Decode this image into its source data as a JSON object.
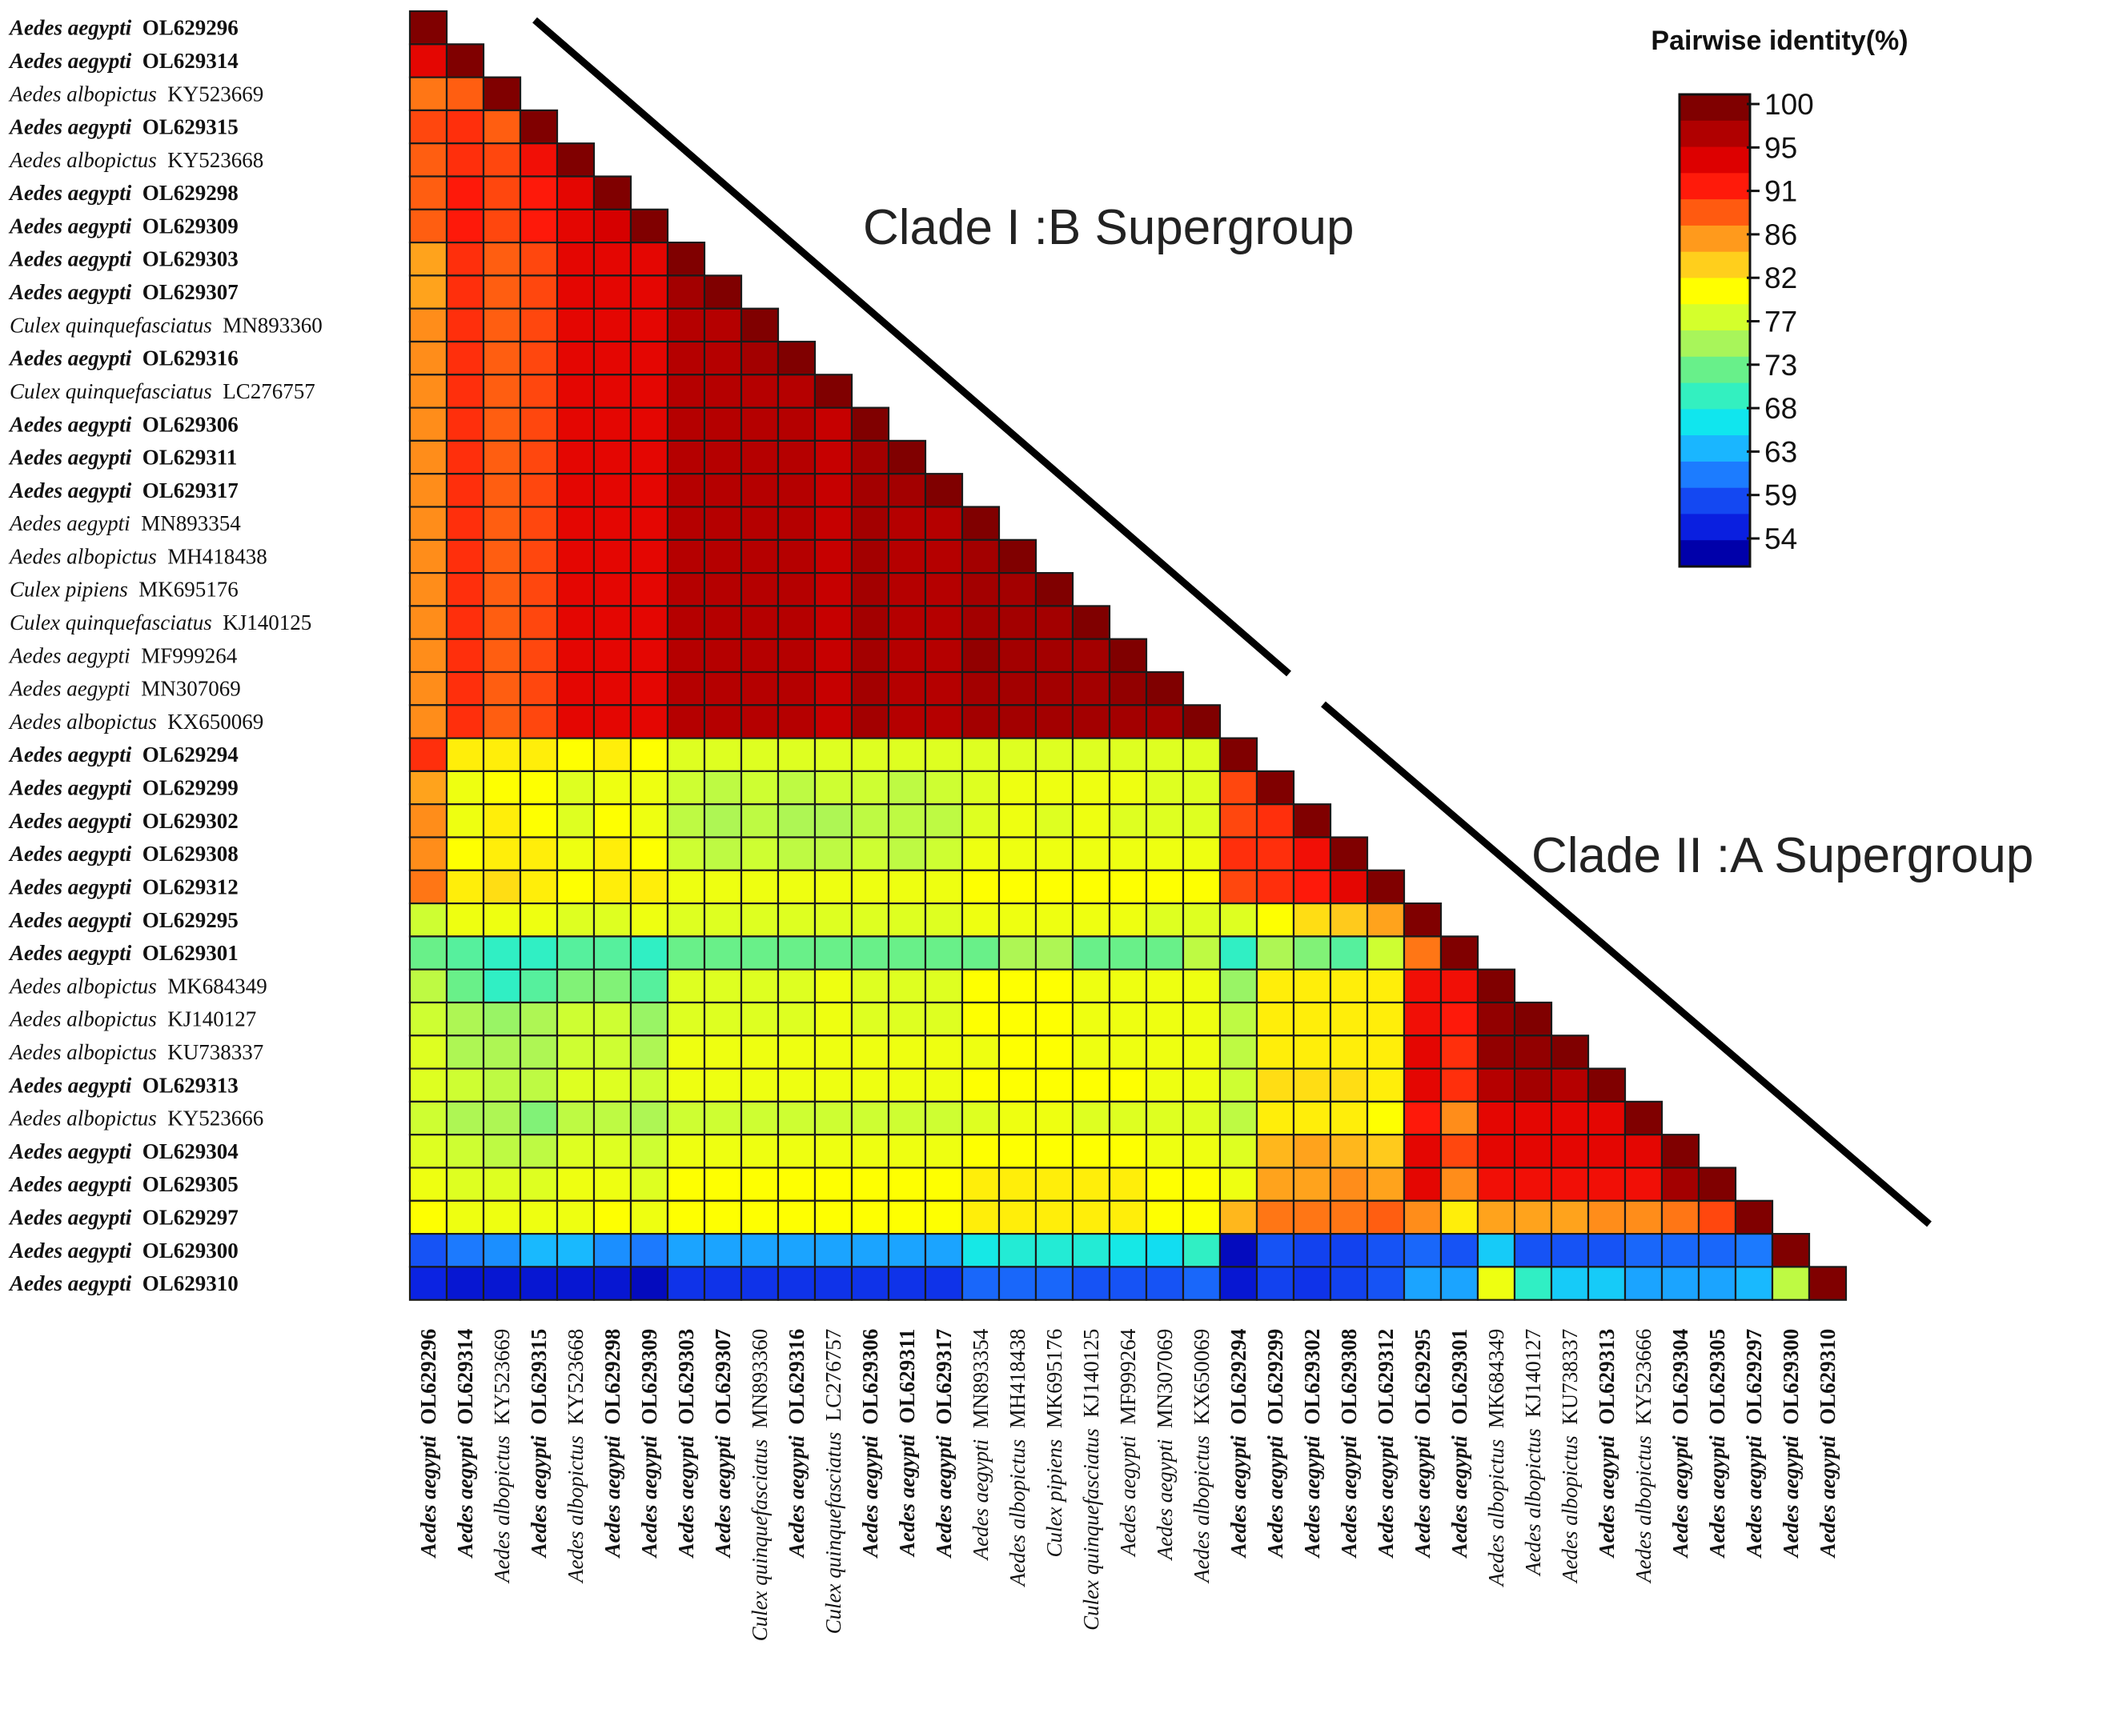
{
  "chart_data": {
    "type": "heatmap",
    "title": "",
    "xlabel": "",
    "ylabel": "",
    "taxa": [
      {
        "species": "Aedes aegypti",
        "accession": "OL629296",
        "bold": true
      },
      {
        "species": "Aedes aegypti",
        "accession": "OL629314",
        "bold": true
      },
      {
        "species": "Aedes albopictus",
        "accession": "KY523669",
        "bold": false
      },
      {
        "species": "Aedes aegypti",
        "accession": "OL629315",
        "bold": true
      },
      {
        "species": "Aedes albopictus",
        "accession": "KY523668",
        "bold": false
      },
      {
        "species": "Aedes aegypti",
        "accession": "OL629298",
        "bold": true
      },
      {
        "species": "Aedes aegypti",
        "accession": "OL629309",
        "bold": true
      },
      {
        "species": "Aedes aegypti",
        "accession": "OL629303",
        "bold": true
      },
      {
        "species": "Aedes aegypti",
        "accession": "OL629307",
        "bold": true
      },
      {
        "species": "Culex quinquefasciatus",
        "accession": "MN893360",
        "bold": false
      },
      {
        "species": "Aedes aegypti",
        "accession": "OL629316",
        "bold": true
      },
      {
        "species": "Culex quinquefasciatus",
        "accession": "LC276757",
        "bold": false
      },
      {
        "species": "Aedes aegypti",
        "accession": "OL629306",
        "bold": true
      },
      {
        "species": "Aedes aegypti",
        "accession": "OL629311",
        "bold": true
      },
      {
        "species": "Aedes aegypti",
        "accession": "OL629317",
        "bold": true
      },
      {
        "species": "Aedes aegypti",
        "accession": "MN893354",
        "bold": false
      },
      {
        "species": "Aedes albopictus",
        "accession": "MH418438",
        "bold": false
      },
      {
        "species": "Culex pipiens",
        "accession": "MK695176",
        "bold": false
      },
      {
        "species": "Culex quinquefasciatus",
        "accession": "KJ140125",
        "bold": false
      },
      {
        "species": "Aedes aegypti",
        "accession": "MF999264",
        "bold": false
      },
      {
        "species": "Aedes aegypti",
        "accession": "MN307069",
        "bold": false
      },
      {
        "species": "Aedes albopictus",
        "accession": "KX650069",
        "bold": false
      },
      {
        "species": "Aedes aegypti",
        "accession": "OL629294",
        "bold": true
      },
      {
        "species": "Aedes aegypti",
        "accession": "OL629299",
        "bold": true
      },
      {
        "species": "Aedes aegypti",
        "accession": "OL629302",
        "bold": true
      },
      {
        "species": "Aedes aegypti",
        "accession": "OL629308",
        "bold": true
      },
      {
        "species": "Aedes aegypti",
        "accession": "OL629312",
        "bold": true
      },
      {
        "species": "Aedes aegypti",
        "accession": "OL629295",
        "bold": true
      },
      {
        "species": "Aedes aegypti",
        "accession": "OL629301",
        "bold": true
      },
      {
        "species": "Aedes albopictus",
        "accession": "MK684349",
        "bold": false
      },
      {
        "species": "Aedes albopictus",
        "accession": "KJ140127",
        "bold": false
      },
      {
        "species": "Aedes albopictus",
        "accession": "KU738337",
        "bold": false
      },
      {
        "species": "Aedes aegypti",
        "accession": "OL629313",
        "bold": true
      },
      {
        "species": "Aedes albopictus",
        "accession": "KY523666",
        "bold": false
      },
      {
        "species": "Aedes aegypti",
        "accession": "OL629304",
        "bold": true
      },
      {
        "species": "Aedes aegypti",
        "accession": "OL629305",
        "bold": true
      },
      {
        "species": "Aedes aegypti",
        "accession": "OL629297",
        "bold": true
      },
      {
        "species": "Aedes aegypti",
        "accession": "OL629300",
        "bold": true
      },
      {
        "species": "Aedes aegypti",
        "accession": "OL629310",
        "bold": true
      }
    ],
    "matrix_lower_triangle": [
      [
        100
      ],
      [
        94,
        100
      ],
      [
        88,
        89,
        100
      ],
      [
        90,
        91,
        89,
        100
      ],
      [
        89,
        91,
        90,
        93,
        100
      ],
      [
        89,
        92,
        90,
        92,
        94,
        100
      ],
      [
        89,
        92,
        90,
        92,
        94,
        95,
        100
      ],
      [
        86,
        91,
        89,
        90,
        94,
        94,
        94,
        100
      ],
      [
        86,
        91,
        89,
        90,
        94,
        94,
        94,
        98,
        100
      ],
      [
        87,
        91,
        89,
        90,
        94,
        94,
        94,
        97,
        97,
        100
      ],
      [
        87,
        91,
        89,
        90,
        94,
        94,
        94,
        97,
        97,
        98,
        100
      ],
      [
        87,
        91,
        89,
        90,
        94,
        94,
        94,
        97,
        97,
        97,
        97,
        100
      ],
      [
        87,
        91,
        89,
        90,
        94,
        94,
        94,
        97,
        97,
        97,
        97,
        96,
        100
      ],
      [
        87,
        91,
        89,
        90,
        94,
        94,
        94,
        97,
        97,
        97,
        97,
        96,
        98,
        100
      ],
      [
        87,
        91,
        89,
        90,
        94,
        94,
        94,
        97,
        97,
        97,
        97,
        96,
        98,
        98,
        100
      ],
      [
        87,
        91,
        89,
        90,
        94,
        94,
        94,
        97,
        97,
        97,
        97,
        96,
        98,
        97,
        97,
        100
      ],
      [
        87,
        91,
        89,
        90,
        94,
        94,
        94,
        97,
        97,
        97,
        97,
        96,
        98,
        97,
        97,
        98,
        100
      ],
      [
        87,
        91,
        89,
        90,
        94,
        94,
        94,
        97,
        97,
        97,
        97,
        96,
        98,
        97,
        97,
        98,
        98,
        100
      ],
      [
        87,
        91,
        89,
        90,
        94,
        94,
        94,
        97,
        97,
        97,
        97,
        96,
        98,
        97,
        97,
        98,
        98,
        98,
        100
      ],
      [
        87,
        91,
        89,
        90,
        94,
        94,
        94,
        97,
        97,
        97,
        97,
        96,
        98,
        97,
        97,
        99,
        98,
        98,
        98,
        100
      ],
      [
        87,
        91,
        89,
        90,
        94,
        94,
        94,
        97,
        97,
        97,
        97,
        96,
        98,
        97,
        97,
        98,
        98,
        98,
        98,
        99,
        100
      ],
      [
        87,
        91,
        89,
        90,
        94,
        94,
        94,
        97,
        97,
        97,
        97,
        96,
        98,
        97,
        97,
        98,
        98,
        98,
        98,
        98,
        98,
        100
      ],
      [
        91,
        82,
        82,
        82,
        81,
        82,
        81,
        79,
        79,
        79,
        79,
        79,
        79,
        79,
        79,
        79,
        79,
        79,
        79,
        79,
        79,
        79,
        100
      ],
      [
        86,
        80,
        81,
        81,
        79,
        80,
        80,
        78,
        77,
        78,
        77,
        78,
        78,
        77,
        78,
        79,
        80,
        80,
        80,
        80,
        79,
        79,
        90,
        100
      ],
      [
        87,
        80,
        82,
        81,
        79,
        81,
        80,
        77,
        76,
        77,
        76,
        76,
        77,
        77,
        77,
        79,
        80,
        79,
        80,
        79,
        79,
        79,
        90,
        91,
        100
      ],
      [
        87,
        81,
        82,
        82,
        80,
        82,
        81,
        78,
        77,
        78,
        77,
        77,
        78,
        77,
        78,
        80,
        80,
        80,
        80,
        80,
        80,
        80,
        91,
        91,
        93,
        100
      ],
      [
        88,
        82,
        83,
        82,
        81,
        82,
        82,
        80,
        80,
        80,
        80,
        80,
        80,
        80,
        80,
        81,
        81,
        81,
        81,
        81,
        81,
        81,
        90,
        91,
        92,
        94,
        100
      ],
      [
        78,
        80,
        80,
        80,
        79,
        79,
        80,
        79,
        79,
        79,
        79,
        79,
        79,
        79,
        79,
        80,
        80,
        80,
        80,
        80,
        79,
        79,
        79,
        81,
        83,
        84,
        86,
        100
      ],
      [
        73,
        72,
        70,
        70,
        72,
        72,
        70,
        73,
        73,
        73,
        73,
        73,
        73,
        73,
        73,
        73,
        76,
        76,
        73,
        73,
        73,
        77,
        70,
        76,
        74,
        72,
        78,
        88,
        100
      ],
      [
        77,
        73,
        70,
        72,
        74,
        74,
        72,
        79,
        79,
        79,
        79,
        80,
        79,
        79,
        79,
        81,
        81,
        81,
        80,
        80,
        80,
        80,
        75,
        82,
        82,
        82,
        82,
        93,
        93,
        100
      ],
      [
        78,
        76,
        75,
        76,
        78,
        78,
        75,
        79,
        79,
        79,
        79,
        80,
        79,
        79,
        79,
        81,
        81,
        81,
        80,
        80,
        80,
        80,
        77,
        82,
        82,
        82,
        82,
        93,
        92,
        99,
        100
      ],
      [
        79,
        76,
        76,
        76,
        78,
        78,
        76,
        80,
        80,
        80,
        80,
        80,
        80,
        80,
        80,
        80,
        81,
        81,
        80,
        80,
        80,
        80,
        77,
        82,
        82,
        82,
        82,
        94,
        91,
        99,
        99,
        100
      ],
      [
        79,
        78,
        77,
        77,
        79,
        79,
        78,
        80,
        80,
        80,
        80,
        80,
        80,
        80,
        80,
        81,
        81,
        81,
        81,
        81,
        80,
        80,
        78,
        83,
        83,
        83,
        82,
        94,
        91,
        97,
        98,
        97,
        100
      ],
      [
        78,
        76,
        76,
        74,
        77,
        77,
        76,
        78,
        78,
        78,
        78,
        78,
        78,
        78,
        78,
        79,
        80,
        80,
        79,
        79,
        79,
        79,
        77,
        82,
        82,
        82,
        81,
        92,
        87,
        94,
        94,
        94,
        94,
        100
      ],
      [
        79,
        78,
        77,
        77,
        79,
        79,
        78,
        80,
        80,
        80,
        80,
        80,
        80,
        80,
        80,
        81,
        81,
        81,
        81,
        81,
        80,
        80,
        79,
        85,
        86,
        85,
        84,
        94,
        90,
        94,
        94,
        94,
        94,
        94,
        100
      ],
      [
        80,
        79,
        79,
        79,
        80,
        80,
        79,
        81,
        81,
        81,
        81,
        81,
        81,
        81,
        81,
        82,
        82,
        82,
        82,
        82,
        81,
        81,
        80,
        86,
        86,
        87,
        86,
        94,
        87,
        93,
        93,
        93,
        93,
        93,
        98,
        100
      ],
      [
        81,
        80,
        80,
        80,
        80,
        81,
        80,
        81,
        81,
        81,
        81,
        81,
        81,
        81,
        81,
        82,
        82,
        82,
        82,
        82,
        81,
        81,
        85,
        88,
        88,
        88,
        89,
        87,
        82,
        86,
        86,
        86,
        87,
        87,
        88,
        90,
        100
      ],
      [
        60,
        62,
        63,
        65,
        65,
        63,
        62,
        64,
        64,
        64,
        64,
        64,
        64,
        64,
        64,
        68,
        69,
        69,
        69,
        68,
        67,
        70,
        55,
        60,
        59,
        59,
        60,
        61,
        60,
        66,
        60,
        60,
        60,
        61,
        61,
        61,
        62,
        100
      ],
      [
        57,
        56,
        56,
        56,
        56,
        56,
        55,
        58,
        58,
        58,
        58,
        58,
        58,
        58,
        58,
        61,
        61,
        61,
        60,
        60,
        60,
        61,
        56,
        59,
        58,
        59,
        60,
        64,
        64,
        80,
        70,
        66,
        66,
        64,
        64,
        64,
        65,
        77,
        100
      ]
    ],
    "color_scale": {
      "title": "Pairwise identity(%)",
      "range": [
        54,
        100
      ],
      "tick_labels": [
        "100",
        "95",
        "91",
        "86",
        "82",
        "77",
        "73",
        "68",
        "63",
        "59",
        "54"
      ],
      "colors": [
        "#800000",
        "#B00000",
        "#DD0000",
        "#FF1A0A",
        "#FF5A10",
        "#FF9A1C",
        "#FFCF1C",
        "#FFFF00",
        "#D4FF2C",
        "#A8F55A",
        "#68F08A",
        "#33F0C0",
        "#10E6EE",
        "#1AB6FF",
        "#1C7CFF",
        "#1448F2",
        "#0A1FE0",
        "#0000AA"
      ]
    },
    "annotations": [
      "Clade I :B Supergroup",
      "Clade II :A Supergroup"
    ]
  }
}
